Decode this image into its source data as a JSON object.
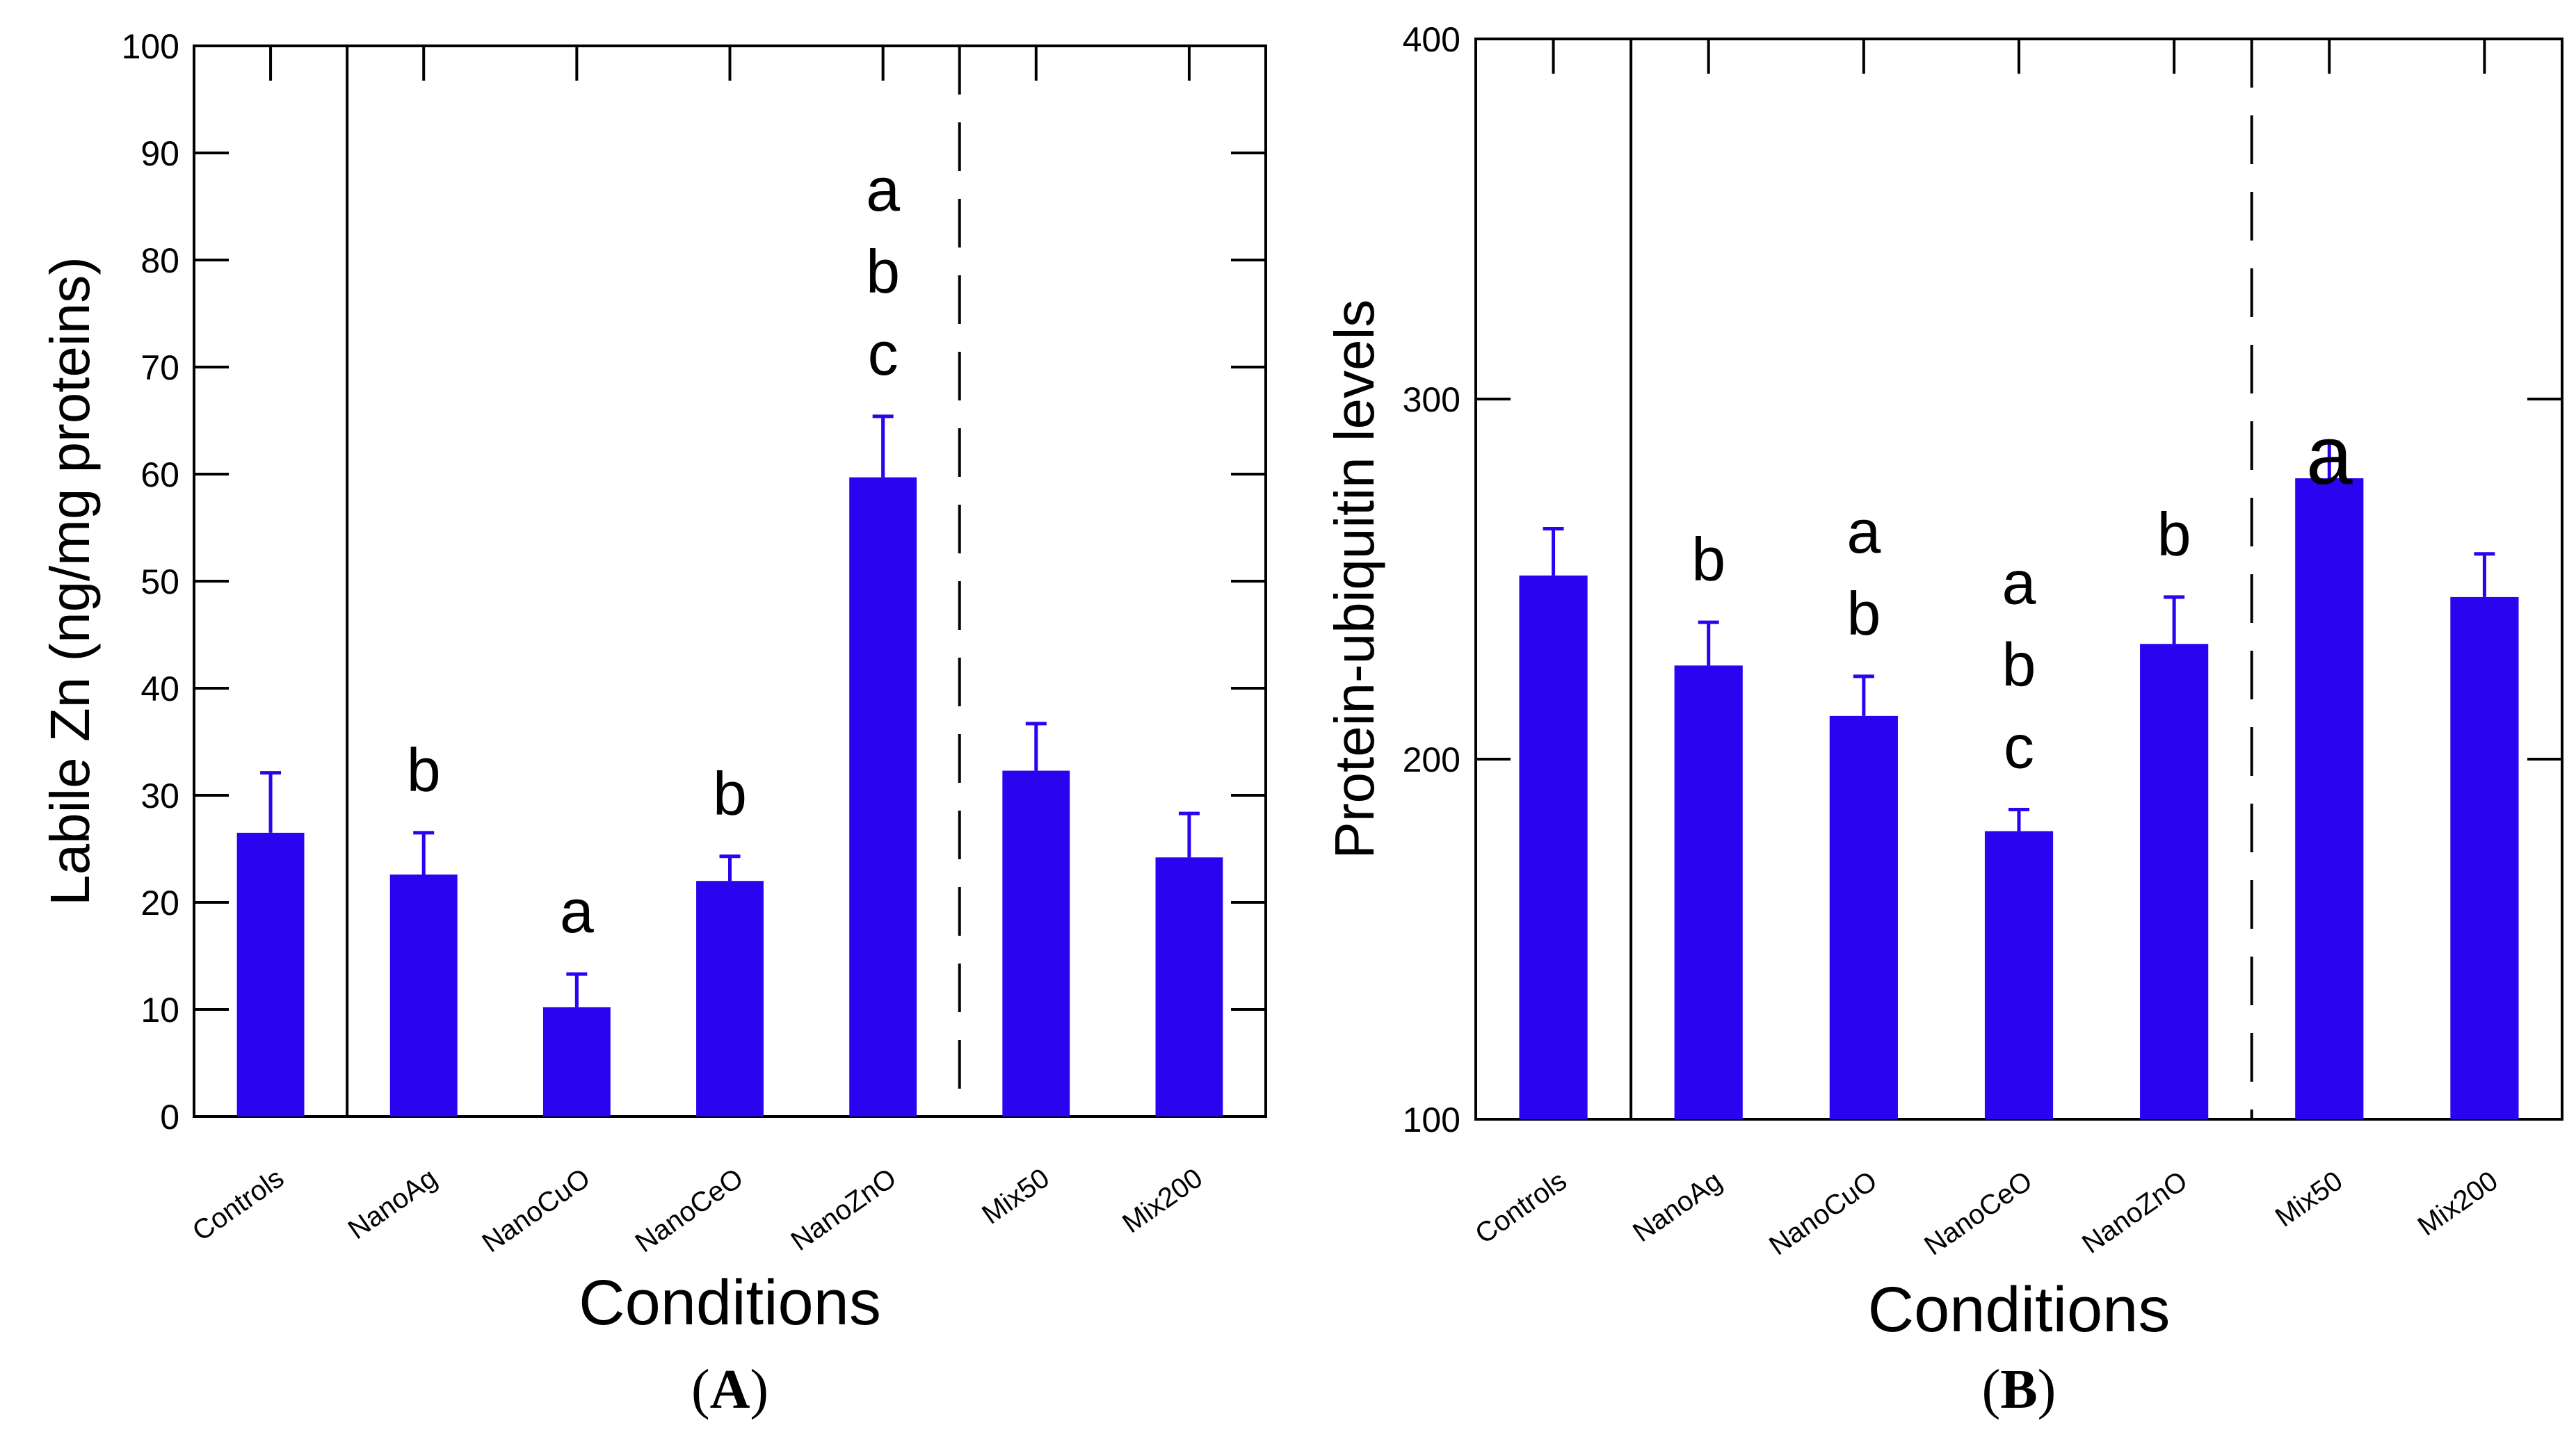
{
  "chart_data": [
    {
      "type": "bar",
      "panel_label": "A",
      "categories": [
        "Controls",
        "NanoAg",
        "NanoCuO",
        "NanoCeO",
        "NanoZnO",
        "Mix50",
        "Mix200"
      ],
      "values": [
        26.5,
        22.6,
        10.2,
        22.0,
        59.7,
        32.3,
        24.2
      ],
      "errors": [
        5.6,
        3.9,
        3.1,
        2.3,
        5.7,
        4.4,
        4.1
      ],
      "significance": [
        "",
        "b",
        "a",
        "b",
        "a\nb\nc",
        "",
        ""
      ],
      "xlabel": "Conditions",
      "ylabel": "Labile Zn (ng/mg proteins)",
      "ylim": [
        0,
        100
      ],
      "yticks": [
        0,
        10,
        20,
        30,
        40,
        50,
        60,
        70,
        80,
        90,
        100
      ],
      "separators": [
        {
          "after_index": 0,
          "style": "solid"
        },
        {
          "after_index": 4,
          "style": "dashed"
        }
      ],
      "color": "#2a04ee"
    },
    {
      "type": "bar",
      "panel_label": "B",
      "categories": [
        "Controls",
        "NanoAg",
        "NanoCuO",
        "NanoCeO",
        "NanoZnO",
        "Mix50",
        "Mix200"
      ],
      "values": [
        251,
        226,
        212,
        180,
        232,
        278,
        245
      ],
      "errors": [
        13,
        12,
        11,
        6,
        13,
        10,
        12
      ],
      "significance": [
        "",
        "b",
        "a\nb",
        "a\nb\nc",
        "b",
        "a",
        ""
      ],
      "xlabel": "Conditions",
      "ylabel": "Protein-ubiquitin levels",
      "ylim": [
        100,
        400
      ],
      "yticks": [
        100,
        200,
        300,
        400
      ],
      "separators": [
        {
          "after_index": 0,
          "style": "solid"
        },
        {
          "after_index": 4,
          "style": "dashed"
        }
      ],
      "color": "#2a04ee"
    }
  ]
}
